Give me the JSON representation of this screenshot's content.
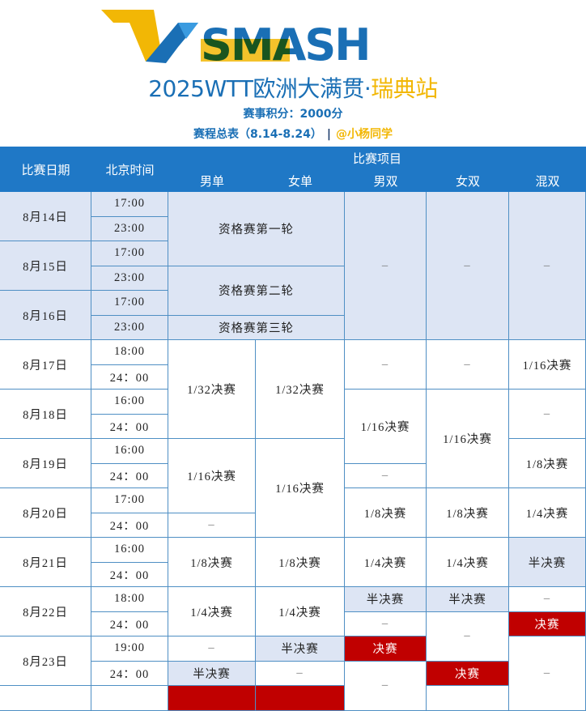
{
  "header": {
    "logo_text": "SMASH",
    "title_main": "2025WTT欧洲大满贯·",
    "title_accent": "瑞典站",
    "points": "赛事积分：2000分",
    "schedule_label": "赛程总表（8.14-8.24）",
    "separator": "|",
    "author": "@小杨同学"
  },
  "colors": {
    "header_blue": "#1f78c6",
    "qualifier_bg": "#dde5f4",
    "semifinal_bg": "#dde5f4",
    "final_red": "#c00000",
    "accent_yellow": "#f2b705"
  },
  "table": {
    "col_date": "比赛日期",
    "col_time": "北京时间",
    "col_events": "比赛项目",
    "events": [
      "男单",
      "女单",
      "男双",
      "女双",
      "混双"
    ],
    "days": [
      {
        "date": "8月14日",
        "times": [
          "17:00",
          "23:00"
        ],
        "stage": "pre"
      },
      {
        "date": "8月15日",
        "times": [
          "17:00",
          "23:00"
        ],
        "stage": "pre"
      },
      {
        "date": "8月16日",
        "times": [
          "17:00",
          "23:00"
        ],
        "stage": "pre"
      },
      {
        "date": "8月17日",
        "times": [
          "18:00",
          "24：00"
        ]
      },
      {
        "date": "8月18日",
        "times": [
          "16:00",
          "24：00"
        ]
      },
      {
        "date": "8月19日",
        "times": [
          "16:00",
          "24：00"
        ]
      },
      {
        "date": "8月20日",
        "times": [
          "17:00",
          "24：00"
        ]
      },
      {
        "date": "8月21日",
        "times": [
          "16:00",
          "24：00"
        ]
      },
      {
        "date": "8月22日",
        "times": [
          "18:00",
          "24：00"
        ]
      },
      {
        "date": "8月23日",
        "times": [
          "19:00",
          "24：00"
        ]
      },
      {
        "date": "",
        "times": [
          ""
        ]
      }
    ],
    "qualifying": [
      {
        "text": "资格赛第一轮",
        "slots": 3
      },
      {
        "text": "资格赛第二轮",
        "slots": 2
      },
      {
        "text": "资格赛第三轮",
        "slots": 1
      }
    ],
    "columns": [
      [
        {
          "text": "1/32决赛",
          "slots": 4
        },
        {
          "text": "1/16决赛",
          "slots": 3
        },
        {
          "text": "–",
          "slots": 1
        },
        {
          "text": "1/8决赛",
          "slots": 2
        },
        {
          "text": "1/4决赛",
          "slots": 2
        },
        {
          "text": "–",
          "slots": 1
        },
        {
          "text": "半决赛",
          "slots": 1,
          "status": "semi"
        },
        {
          "text": "",
          "slots": 1,
          "status": "final"
        }
      ],
      [
        {
          "text": "1/32决赛",
          "slots": 4
        },
        {
          "text": "1/16决赛",
          "slots": 4
        },
        {
          "text": "1/8决赛",
          "slots": 2
        },
        {
          "text": "1/4决赛",
          "slots": 2
        },
        {
          "text": "半决赛",
          "slots": 1,
          "status": "semi"
        },
        {
          "text": "–",
          "slots": 1
        },
        {
          "text": "",
          "slots": 1,
          "status": "final"
        }
      ],
      [
        {
          "text": "–",
          "slots": 6,
          "status": "pre"
        },
        {
          "text": "–",
          "slots": 2
        },
        {
          "text": "1/16决赛",
          "slots": 3
        },
        {
          "text": "–",
          "slots": 1
        },
        {
          "text": "1/8决赛",
          "slots": 2
        },
        {
          "text": "1/4决赛",
          "slots": 2
        },
        {
          "text": "半决赛",
          "slots": 1,
          "status": "semi"
        },
        {
          "text": "–",
          "slots": 1
        },
        {
          "text": "决赛",
          "slots": 1,
          "status": "final"
        },
        {
          "text": "–",
          "slots": 2
        }
      ],
      [
        {
          "text": "–",
          "slots": 6,
          "status": "pre"
        },
        {
          "text": "–",
          "slots": 2
        },
        {
          "text": "1/16决赛",
          "slots": 4
        },
        {
          "text": "1/8决赛",
          "slots": 2
        },
        {
          "text": "1/4决赛",
          "slots": 2
        },
        {
          "text": "半决赛",
          "slots": 1,
          "status": "semi"
        },
        {
          "text": "–",
          "slots": 2
        },
        {
          "text": "决赛",
          "slots": 1,
          "status": "final"
        },
        {
          "text": "",
          "slots": 1
        }
      ],
      [
        {
          "text": "–",
          "slots": 6,
          "status": "pre"
        },
        {
          "text": "1/16决赛",
          "slots": 2
        },
        {
          "text": "–",
          "slots": 2
        },
        {
          "text": "1/8决赛",
          "slots": 2
        },
        {
          "text": "1/4决赛",
          "slots": 2
        },
        {
          "text": "半决赛",
          "slots": 2,
          "status": "semi"
        },
        {
          "text": "–",
          "slots": 1
        },
        {
          "text": "决赛",
          "slots": 1,
          "status": "final"
        },
        {
          "text": "–",
          "slots": 3
        }
      ]
    ]
  }
}
